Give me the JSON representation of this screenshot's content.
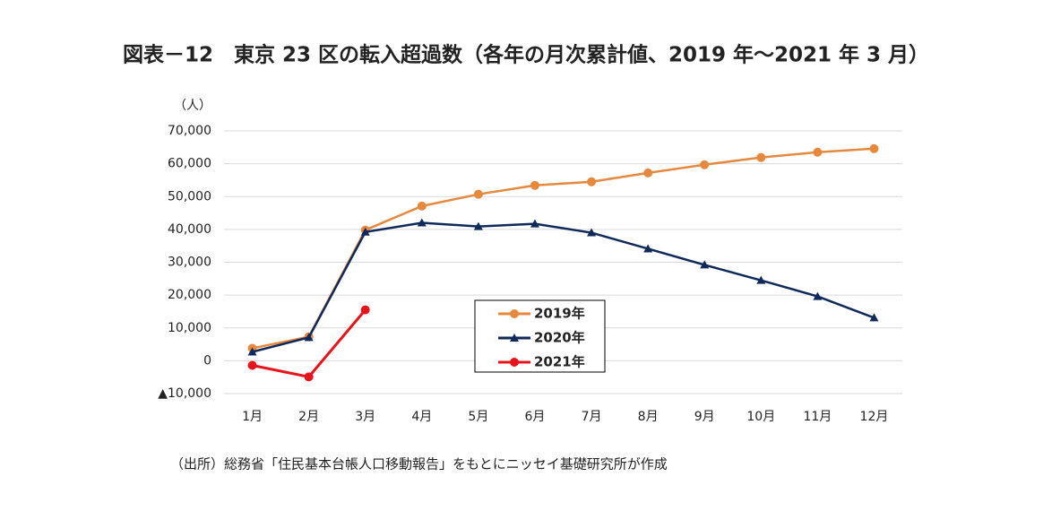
{
  "chart_data": {
    "type": "line",
    "title": "図表－12　東京 23 区の転入超過数（各年の月次累計値、2019 年～2021 年 3 月）",
    "y_label": "（人）",
    "note": "（出所）総務省「住民基本台帳人口移動報告」をもとにニッセイ基礎研究所が作成",
    "categories": [
      "1月",
      "2月",
      "3月",
      "4月",
      "5月",
      "6月",
      "7月",
      "8月",
      "9月",
      "10月",
      "11月",
      "12月"
    ],
    "series": [
      {
        "name": "2019年",
        "color": "#e6893f",
        "marker": "circle",
        "values": [
          3800,
          7300,
          39800,
          47100,
          50700,
          53400,
          54500,
          57200,
          59700,
          61900,
          63500,
          64600
        ]
      },
      {
        "name": "2020年",
        "color": "#0f2a5a",
        "marker": "triangle",
        "values": [
          2700,
          7100,
          39200,
          42000,
          40900,
          41700,
          39000,
          34100,
          29200,
          24500,
          19600,
          13100
        ]
      },
      {
        "name": "2021年",
        "color": "#e8141b",
        "marker": "circle",
        "values": [
          -1400,
          -4900,
          15500,
          null,
          null,
          null,
          null,
          null,
          null,
          null,
          null,
          null
        ]
      }
    ],
    "ylim": [
      -10000,
      70000
    ],
    "yticks": [
      {
        "value": -10000,
        "label": "▲10,000"
      },
      0,
      {
        "value": 10000,
        "label": "10,000"
      },
      {
        "value": 20000,
        "label": "20,000"
      },
      {
        "value": 30000,
        "label": "30,000"
      },
      {
        "value": 40000,
        "label": "40,000"
      },
      {
        "value": 50000,
        "label": "50,000"
      },
      {
        "value": 60000,
        "label": "60,000"
      },
      {
        "value": 70000,
        "label": "70,000"
      }
    ],
    "grid": true
  }
}
